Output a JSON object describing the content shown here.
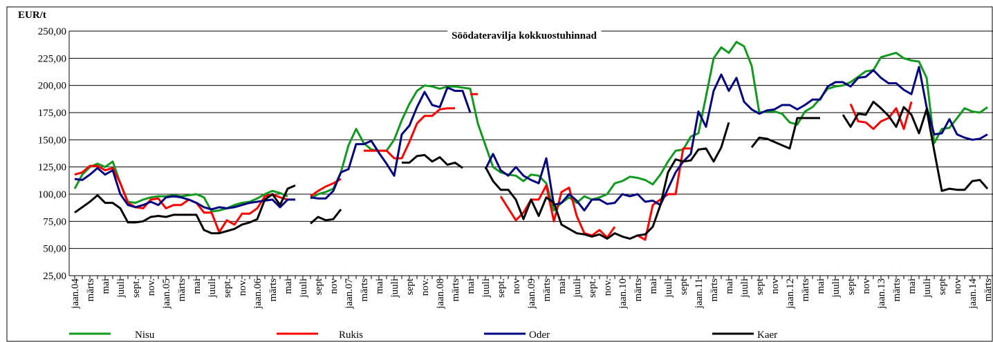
{
  "chart_data": {
    "type": "line",
    "title": "Söödateravilja kokkuostuhinnad",
    "y_label": "EUR/t",
    "categories": [
      "jaan.04",
      null,
      "märts",
      null,
      "mai",
      null,
      "juuli",
      null,
      "sept.",
      null,
      "nov.",
      null,
      "jaan.05",
      null,
      "märts",
      null,
      "mai",
      null,
      "juuli",
      null,
      "sept.",
      null,
      "nov.",
      null,
      "jaan.06",
      null,
      "märts",
      null,
      "mai",
      null,
      "juuli",
      null,
      "sept",
      null,
      "nov",
      null,
      "jaan.07",
      null,
      "märts",
      null,
      "mai",
      null,
      "juuli",
      null,
      "sept",
      null,
      "nov.",
      null,
      "jaan.08",
      null,
      "märts",
      null,
      "mai",
      null,
      "juuli",
      null,
      "sept.",
      null,
      "nov",
      null,
      "jaan.09",
      null,
      "märts",
      null,
      "mai",
      null,
      "juuli",
      null,
      "sept.",
      null,
      "nov.",
      null,
      "jaan.10",
      null,
      "märts",
      null,
      "mai",
      null,
      "juuli",
      null,
      "sept",
      null,
      "jaan.11",
      null,
      "märts",
      null,
      "mai",
      null,
      "juuli",
      null,
      "sept",
      null,
      "nov",
      null,
      "jaan.12",
      null,
      "märts",
      null,
      "mai",
      null,
      "juuli",
      null,
      "sept",
      null,
      "nov",
      null,
      "jaan.13",
      null,
      "märts",
      null,
      "mai",
      null,
      "juuli",
      null,
      "sept",
      null,
      "nov",
      null,
      "jaan.14",
      null,
      "märts"
    ],
    "series": [
      {
        "name": "Nisu",
        "color": "#0f9a1e",
        "values": [
          105,
          118,
          125,
          128,
          125,
          130,
          110,
          93,
          92,
          95,
          97,
          98,
          98,
          99,
          98,
          99,
          100,
          97,
          84,
          85,
          87,
          90,
          92,
          93,
          96,
          100,
          103,
          101,
          98,
          null,
          null,
          96,
          100,
          102,
          105,
          120,
          145,
          160,
          147,
          141,
          140,
          140,
          150,
          168,
          183,
          195,
          200,
          199,
          197,
          199,
          199,
          198,
          197,
          165,
          145,
          125,
          120,
          118,
          117,
          112,
          118,
          117,
          110,
          85,
          92,
          97,
          92,
          98,
          95,
          97,
          100,
          110,
          112,
          116,
          115,
          113,
          109,
          118,
          130,
          140,
          141,
          153,
          156,
          190,
          225,
          235,
          230,
          240,
          236,
          218,
          175,
          176,
          176,
          174,
          166,
          164,
          176,
          180,
          188,
          197,
          199,
          200,
          203,
          208,
          213,
          214,
          226,
          228,
          230,
          225,
          223,
          222,
          207,
          147,
          160,
          161,
          170,
          179,
          176,
          175,
          180
        ]
      },
      {
        "name": "Rukis",
        "color": "#ff0000",
        "values": [
          118,
          120,
          126,
          126,
          122,
          124,
          110,
          92,
          88,
          87,
          95,
          96,
          87,
          90,
          90,
          95,
          92,
          83,
          83,
          65,
          76,
          72,
          82,
          82,
          87,
          98,
          100,
          97,
          95,
          null,
          null,
          98,
          103,
          107,
          110,
          114,
          null,
          null,
          140,
          140,
          140,
          140,
          133,
          133,
          148,
          165,
          172,
          172,
          178,
          179,
          179,
          null,
          192,
          192,
          null,
          null,
          98,
          87,
          76,
          83,
          95,
          95,
          108,
          75,
          102,
          106,
          80,
          64,
          62,
          67,
          60,
          70,
          null,
          null,
          62,
          58,
          90,
          95,
          100,
          100,
          142,
          142,
          null,
          null,
          null,
          null,
          null,
          null,
          null,
          null,
          null,
          null,
          null,
          null,
          null,
          null,
          null,
          null,
          null,
          null,
          null,
          null,
          183,
          167,
          166,
          160,
          167,
          170,
          179,
          160,
          185,
          null,
          null,
          null,
          null,
          null,
          null,
          null,
          null,
          null,
          null
        ]
      },
      {
        "name": "Oder",
        "color": "#000080",
        "values": [
          114,
          113,
          118,
          124,
          118,
          122,
          100,
          90,
          88,
          90,
          93,
          90,
          97,
          98,
          97,
          95,
          92,
          88,
          86,
          88,
          87,
          88,
          90,
          92,
          93,
          94,
          95,
          88,
          95,
          95,
          null,
          97,
          96,
          96,
          103,
          120,
          123,
          146,
          146,
          149,
          138,
          128,
          117,
          155,
          163,
          180,
          194,
          182,
          180,
          198,
          195,
          195,
          175,
          null,
          123,
          137,
          122,
          117,
          125,
          117,
          113,
          110,
          133,
          90,
          92,
          100,
          94,
          85,
          95,
          95,
          91,
          92,
          100,
          98,
          100,
          93,
          94,
          90,
          105,
          120,
          130,
          137,
          176,
          162,
          195,
          210,
          195,
          207,
          185,
          178,
          174,
          177,
          178,
          182,
          182,
          178,
          182,
          187,
          187,
          199,
          203,
          203,
          199,
          207,
          208,
          214,
          207,
          202,
          202,
          196,
          192,
          217,
          180,
          155,
          156,
          169,
          155,
          152,
          150,
          151,
          155
        ]
      },
      {
        "name": "Kaer",
        "color": "#000000",
        "values": [
          83,
          88,
          93,
          99,
          92,
          92,
          87,
          74,
          74,
          75,
          79,
          80,
          79,
          81,
          81,
          81,
          81,
          67,
          64,
          64,
          66,
          68,
          72,
          74,
          77,
          95,
          100,
          90,
          105,
          108,
          null,
          73,
          79,
          76,
          77,
          86,
          null,
          null,
          null,
          null,
          null,
          null,
          null,
          129,
          129,
          135,
          136,
          130,
          134,
          127,
          129,
          124,
          null,
          null,
          125,
          112,
          104,
          104,
          95,
          77,
          95,
          80,
          97,
          92,
          72,
          68,
          64,
          63,
          61,
          63,
          59,
          64,
          61,
          59,
          62,
          63,
          70,
          90,
          120,
          132,
          130,
          131,
          141,
          142,
          130,
          143,
          166,
          null,
          null,
          143,
          152,
          151,
          148,
          145,
          142,
          170,
          170,
          170,
          170,
          null,
          null,
          173,
          162,
          174,
          173,
          185,
          179,
          172,
          162,
          180,
          173,
          156,
          178,
          140,
          103,
          105,
          104,
          104,
          112,
          113,
          105
        ]
      }
    ],
    "ylim": [
      25,
      250
    ],
    "yticks": [
      {
        "value": 25,
        "label": "25,00"
      },
      {
        "value": 50,
        "label": "50,00"
      },
      {
        "value": 75,
        "label": "75,00"
      },
      {
        "value": 100,
        "label": "100,00"
      },
      {
        "value": 125,
        "label": "125,00"
      },
      {
        "value": 150,
        "label": "150,00"
      },
      {
        "value": 175,
        "label": "175,00"
      },
      {
        "value": 200,
        "label": "200,00"
      },
      {
        "value": 225,
        "label": "225,00"
      },
      {
        "value": 250,
        "label": "250,00"
      }
    ],
    "grid": true,
    "legend": "bottom"
  }
}
